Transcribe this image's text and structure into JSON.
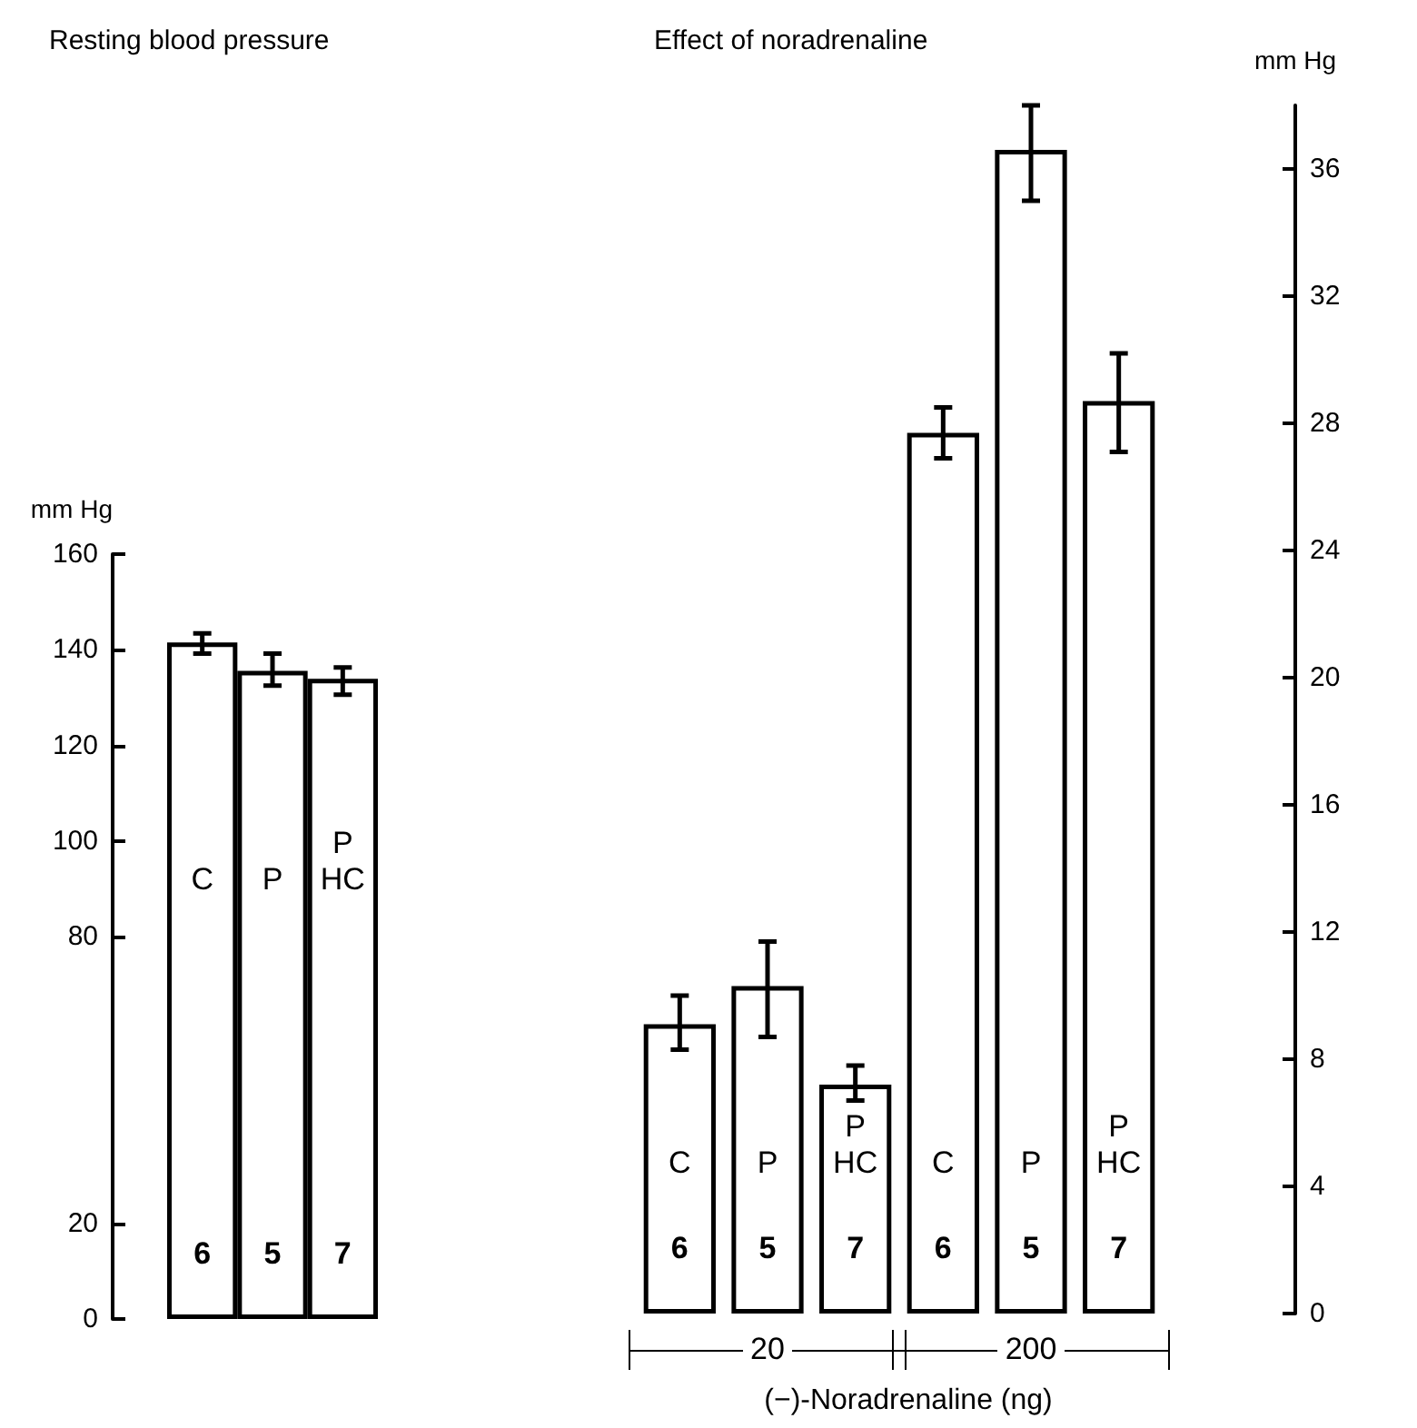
{
  "chart_data": [
    {
      "type": "bar",
      "title": "Resting blood pressure",
      "ylabel": "mm Hg",
      "categories": [
        "C",
        "P",
        "P HC"
      ],
      "values": [
        141.5,
        135.6,
        133.9
      ],
      "errors": [
        [
          139.2,
          143.4
        ],
        [
          132.5,
          139.2
        ],
        [
          130.6,
          136.3
        ]
      ],
      "color": "#ffffff",
      "ylim": [
        0,
        160
      ],
      "yticks": [
        0,
        20,
        80,
        100,
        120,
        140,
        160
      ],
      "annotations": [
        "6",
        "5",
        "7"
      ]
    },
    {
      "type": "bar",
      "title": "Effect of noradrenaline",
      "xlabel": "(−)-Noradrenaline (ng)",
      "ylabel": "mm Hg",
      "categories": [
        "C",
        "P",
        "P HC",
        "C",
        "P",
        "P HC"
      ],
      "values": [
        9.1,
        10.3,
        7.2,
        27.7,
        36.6,
        28.7
      ],
      "errors": [
        [
          8.3,
          10.0
        ],
        [
          8.7,
          11.7
        ],
        [
          6.7,
          7.8
        ],
        [
          26.9,
          28.5
        ],
        [
          35.0,
          38.0
        ],
        [
          27.1,
          30.2
        ]
      ],
      "color": "#ffffff",
      "ylim": [
        0,
        38
      ],
      "yticks": [
        0,
        4,
        8,
        12,
        16,
        20,
        24,
        28,
        32,
        36
      ],
      "annotations": [
        "6",
        "5",
        "7",
        "6",
        "5",
        "7",
        "20",
        "200"
      ]
    }
  ]
}
